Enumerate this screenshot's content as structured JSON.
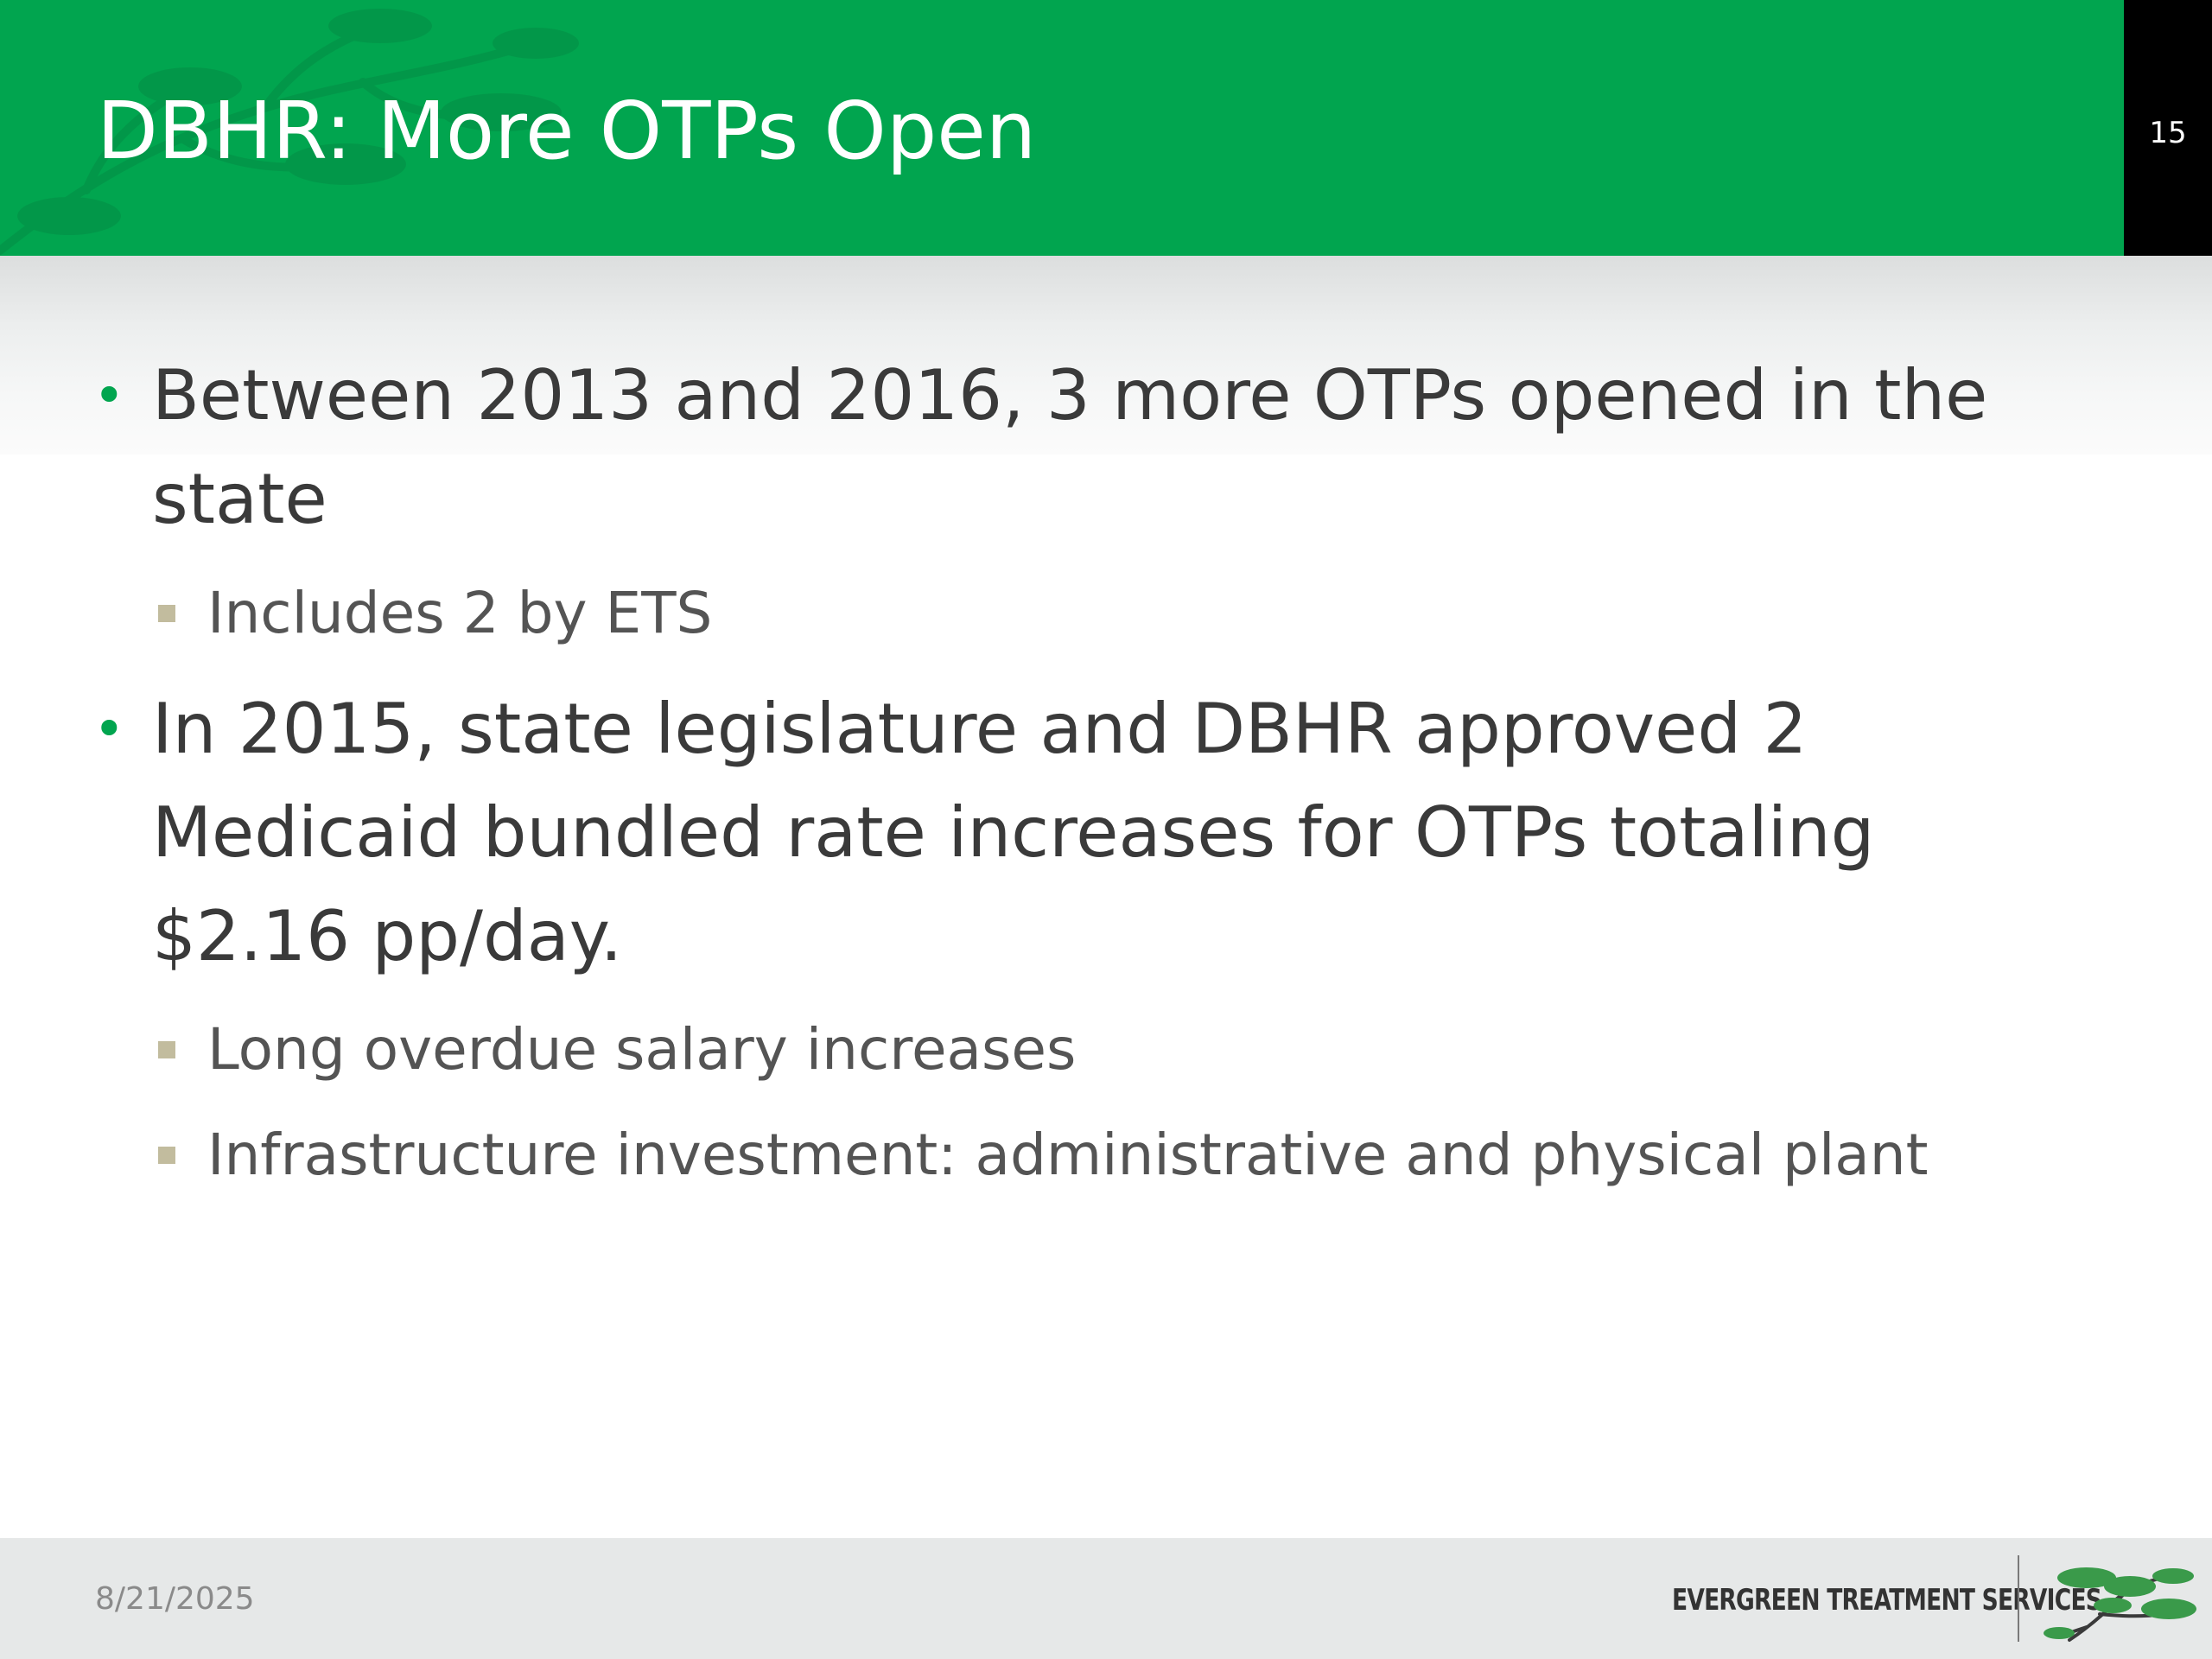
{
  "slide": {
    "title": "DBHR: More OTPs Open",
    "number": "15",
    "date": "8/21/2025",
    "brand": "EVERGREEN TREATMENT SERVICES"
  },
  "bullets": [
    {
      "lines": [
        "Between 2013 and 2016, 3 more OTPs opened in the",
        "state"
      ],
      "sub": [
        "Includes 2 by ETS"
      ]
    },
    {
      "lines": [
        "In 2015, state legislature and DBHR approved 2",
        "Medicaid bundled rate increases for OTPs totaling",
        "$2.16 pp/day."
      ],
      "sub": [
        "Long overdue salary increases",
        "Infrastructure investment: administrative and physical plant"
      ]
    }
  ],
  "colors": {
    "header": "#01a54f",
    "number_box": "#000000",
    "bullet": "#01a54f",
    "sub_bullet": "#c2bc9e",
    "body_text": "#3a3a3a",
    "footer": "#e6e8e8"
  },
  "icons": {
    "header_decoration": "evergreen-branch-watermark",
    "logo": "evergreen-tree-icon"
  }
}
